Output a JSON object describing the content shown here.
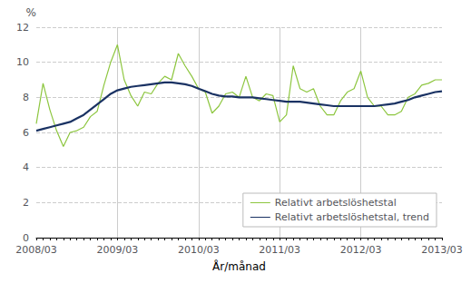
{
  "chart_data": {
    "type": "line",
    "xlabel": "År/månad",
    "ylabel": "%",
    "categories": [
      "2008/03",
      null,
      null,
      null,
      null,
      null,
      null,
      null,
      null,
      null,
      null,
      null,
      "2009/03",
      null,
      null,
      null,
      null,
      null,
      null,
      null,
      null,
      null,
      null,
      null,
      "2010/03",
      null,
      null,
      null,
      null,
      null,
      null,
      null,
      null,
      null,
      null,
      null,
      "2011/03",
      null,
      null,
      null,
      null,
      null,
      null,
      null,
      null,
      null,
      null,
      null,
      "2012/03",
      null,
      null,
      null,
      null,
      null,
      null,
      null,
      null,
      null,
      null,
      null,
      "2013/03"
    ],
    "series": [
      {
        "name": "Relativt arbetslöshetstal",
        "color": "#8dc63f",
        "values": [
          6.5,
          8.8,
          7.3,
          6.1,
          5.2,
          6.0,
          6.1,
          6.3,
          6.9,
          7.2,
          8.7,
          10.0,
          11.0,
          9.0,
          8.1,
          7.5,
          8.3,
          8.2,
          8.8,
          9.2,
          9.0,
          10.5,
          9.8,
          9.2,
          8.5,
          8.3,
          7.1,
          7.5,
          8.2,
          8.3,
          8.0,
          9.2,
          8.0,
          7.8,
          8.2,
          8.1,
          6.6,
          7.0,
          9.8,
          8.5,
          8.3,
          8.5,
          7.5,
          7.0,
          7.0,
          7.8,
          8.3,
          8.5,
          9.5,
          8.0,
          7.5,
          7.5,
          7.0,
          7.0,
          7.2,
          8.0,
          8.2,
          8.7,
          8.8,
          9.0,
          9.0
        ]
      },
      {
        "name": "Relativt arbetslöshetstal, trend",
        "color": "#1a3263",
        "values": [
          6.1,
          6.2,
          6.3,
          6.4,
          6.5,
          6.6,
          6.8,
          7.0,
          7.3,
          7.6,
          7.9,
          8.2,
          8.4,
          8.5,
          8.6,
          8.65,
          8.7,
          8.75,
          8.8,
          8.85,
          8.85,
          8.8,
          8.75,
          8.65,
          8.5,
          8.35,
          8.2,
          8.1,
          8.05,
          8.05,
          8.0,
          8.0,
          8.0,
          7.95,
          7.9,
          7.85,
          7.8,
          7.75,
          7.75,
          7.75,
          7.7,
          7.65,
          7.6,
          7.55,
          7.5,
          7.5,
          7.5,
          7.5,
          7.5,
          7.5,
          7.5,
          7.55,
          7.6,
          7.65,
          7.75,
          7.85,
          8.0,
          8.1,
          8.2,
          8.3,
          8.35
        ]
      }
    ],
    "ylim": [
      0,
      12
    ],
    "yticks": [
      0,
      2,
      4,
      6,
      8,
      10,
      12
    ],
    "grid": true,
    "legend": "lower right"
  }
}
